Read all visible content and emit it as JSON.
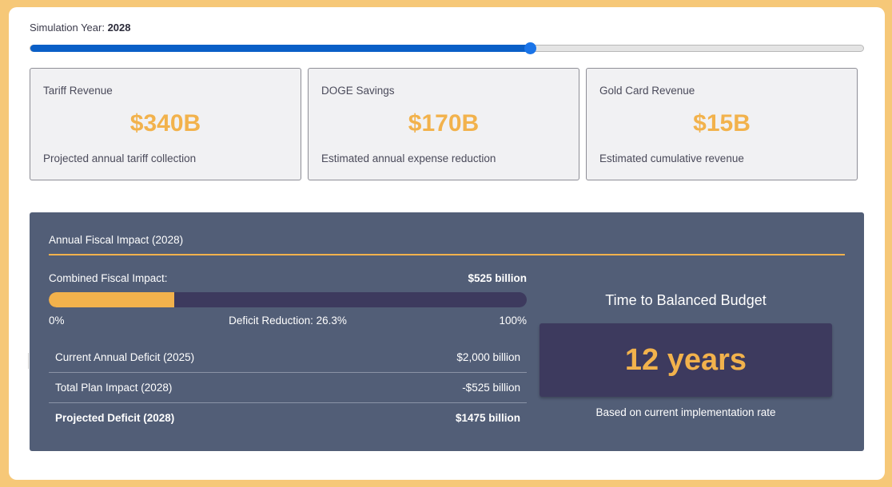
{
  "simulation": {
    "year_label": "Simulation Year:",
    "year_value": "2028",
    "slider_fraction": 0.6
  },
  "metrics": [
    {
      "title": "Tariff Revenue",
      "value": "$340B",
      "description": "Projected annual tariff collection"
    },
    {
      "title": "DOGE Savings",
      "value": "$170B",
      "description": "Estimated annual expense reduction"
    },
    {
      "title": "Gold Card Revenue",
      "value": "$15B",
      "description": "Estimated cumulative revenue"
    }
  ],
  "impact": {
    "title": "Annual Fiscal Impact (2028)",
    "combined_label": "Combined Fiscal Impact:",
    "combined_value": "$525 billion",
    "bar_min": "0%",
    "bar_mid": "Deficit Reduction: 26.3%",
    "bar_max": "100%",
    "deficit_reduction_percent": 26.3,
    "rows": [
      {
        "label": "Current Annual Deficit (2025)",
        "value": "$2,000 billion"
      },
      {
        "label": "Total Plan Impact (2028)",
        "value": "-$525 billion"
      },
      {
        "label": "Projected Deficit (2028)",
        "value": "$1475 billion"
      }
    ]
  },
  "balanced_budget": {
    "title": "Time to Balanced Budget",
    "value": "12 years",
    "note": "Based on current implementation rate"
  },
  "colors": {
    "accent": "#f2b24c",
    "panel": "#525e77",
    "dark": "#3d3a5e",
    "slider": "#0a5fc7"
  }
}
